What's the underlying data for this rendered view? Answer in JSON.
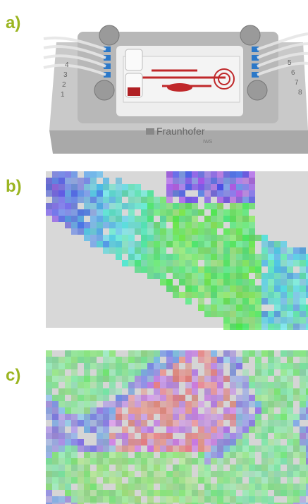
{
  "panels": [
    {
      "label": "a)",
      "device": {
        "brand": "Fraunhofer",
        "institute": "IWS",
        "left_ports": [
          "4",
          "3",
          "2",
          "1"
        ],
        "right_ports": [
          "5",
          "6",
          "7",
          "8"
        ]
      }
    },
    {
      "label": "b)"
    },
    {
      "label": "c)"
    }
  ]
}
